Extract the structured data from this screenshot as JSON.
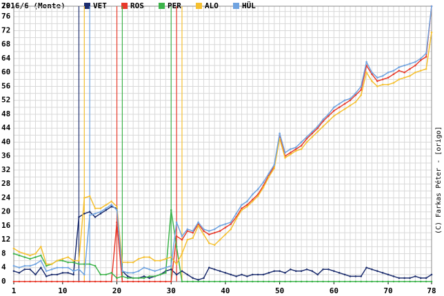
{
  "chart_data": {
    "type": "line",
    "title": "2016/6 (Monte)",
    "credit": "(C) Farkas Péter - [origo]",
    "x": [
      1,
      2,
      3,
      4,
      5,
      6,
      7,
      8,
      9,
      10,
      11,
      12,
      13,
      14,
      15,
      16,
      17,
      18,
      19,
      20,
      21,
      22,
      23,
      24,
      25,
      26,
      27,
      28,
      29,
      30,
      31,
      32,
      33,
      34,
      35,
      36,
      37,
      38,
      39,
      40,
      41,
      42,
      43,
      44,
      45,
      46,
      47,
      48,
      49,
      50,
      51,
      52,
      53,
      54,
      55,
      56,
      57,
      58,
      59,
      60,
      61,
      62,
      63,
      64,
      65,
      66,
      67,
      68,
      69,
      70,
      71,
      72,
      73,
      74,
      75,
      76,
      77,
      78
    ],
    "xlim": [
      1,
      78
    ],
    "xticks": [
      1,
      10,
      20,
      30,
      40,
      50,
      60,
      70,
      78
    ],
    "ylim": [
      0,
      79
    ],
    "yticks": [
      0,
      4,
      8,
      12,
      16,
      20,
      24,
      28,
      32,
      36,
      40,
      44,
      48,
      52,
      56,
      60,
      64,
      68,
      72,
      76,
      79
    ],
    "grid": true,
    "series": [
      {
        "name": "VET",
        "color": "#1c2d6e",
        "pit_laps": [
          13
        ],
        "values": [
          3,
          2.5,
          3.5,
          3.5,
          2,
          4,
          1.5,
          2,
          2,
          2.5,
          2.5,
          2,
          18.5,
          19.5,
          20,
          18.5,
          19.5,
          20.5,
          21.5,
          21,
          3,
          1.5,
          1,
          1,
          1.5,
          1,
          1.5,
          2,
          3,
          3.5,
          2,
          3,
          2,
          1,
          0.5,
          1,
          4,
          3.5,
          3,
          2.5,
          2,
          1.5,
          2,
          1.5,
          2,
          2,
          2,
          2.5,
          3,
          3,
          2.5,
          3.5,
          3,
          3,
          3.5,
          3,
          2,
          3.5,
          3.5,
          3,
          2.5,
          2,
          1.5,
          1.5,
          1.5,
          4,
          3.5,
          3,
          2.5,
          2,
          1.5,
          1,
          1,
          1,
          1.5,
          1,
          1,
          2
        ]
      },
      {
        "name": "ROS",
        "color": "#e8392a",
        "pit_laps": [
          20,
          31
        ],
        "values": [
          0,
          0,
          0,
          0,
          0,
          0,
          0,
          0,
          0,
          0,
          0,
          0,
          0,
          0,
          0,
          0,
          0,
          0,
          0,
          17,
          0,
          0,
          0,
          0,
          0,
          0,
          0,
          0,
          0,
          0,
          13,
          12,
          14.5,
          14,
          16.5,
          14.5,
          13.5,
          14,
          14.5,
          15.5,
          16.5,
          18.5,
          21,
          22,
          23.5,
          25,
          27.5,
          30.5,
          33,
          42,
          36,
          37,
          38,
          39,
          41,
          42.5,
          44,
          46,
          47.5,
          49,
          50,
          51,
          52,
          53.5,
          55,
          62,
          59.5,
          57.5,
          58,
          58.5,
          59.5,
          60.5,
          60,
          61,
          62,
          63.5,
          64.5,
          79
        ]
      },
      {
        "name": "PER",
        "color": "#3cb34a",
        "pit_laps": [
          21,
          30
        ],
        "values": [
          8,
          7.5,
          7,
          6.5,
          7,
          7.5,
          4.5,
          5,
          6,
          6,
          5.5,
          5.5,
          5,
          5,
          5,
          4.5,
          2,
          2,
          2.5,
          1,
          1.5,
          1,
          1,
          1,
          1,
          1.5,
          1.5,
          2,
          2.5,
          20.5,
          10,
          0,
          0,
          0,
          0,
          0,
          0,
          0,
          0,
          0,
          0,
          0,
          0,
          0,
          0,
          0,
          0,
          0,
          0,
          0,
          0,
          0,
          0,
          0,
          0,
          0,
          0,
          0,
          0,
          0,
          0,
          0,
          0,
          0,
          0,
          0,
          0,
          0,
          0,
          0,
          0,
          0,
          0,
          0,
          0,
          0,
          0,
          0
        ]
      },
      {
        "name": "ALO",
        "color": "#f5c030",
        "pit_laps": [
          14,
          32
        ],
        "values": [
          9.5,
          8.5,
          8,
          7.5,
          8,
          10,
          5,
          5,
          6,
          6.5,
          7,
          6,
          6,
          24,
          24.5,
          21,
          21,
          22,
          23,
          21.5,
          5.5,
          5.5,
          5.5,
          6.5,
          7,
          7,
          6,
          6,
          6.5,
          7,
          5,
          8,
          12,
          12.5,
          16,
          13.5,
          11,
          10.5,
          12,
          13.5,
          15,
          18,
          20.5,
          21.5,
          23,
          24.5,
          27,
          30,
          32.5,
          41,
          35.5,
          36.5,
          37.5,
          38,
          40,
          41.5,
          43,
          44.5,
          46,
          47.5,
          48.5,
          49.5,
          50.5,
          51.5,
          53.5,
          60,
          57.5,
          56,
          56.5,
          56.5,
          57,
          58,
          58.5,
          59,
          60,
          60.5,
          61,
          71.5
        ]
      },
      {
        "name": "HÜL",
        "color": "#6fa3e0",
        "pit_laps": [
          15
        ],
        "values": [
          4.5,
          4,
          4.5,
          4.5,
          5,
          6,
          3,
          3.5,
          4,
          4,
          4,
          3,
          3.5,
          2,
          19,
          19.5,
          20,
          21,
          22,
          20.5,
          3,
          2.5,
          2.5,
          3,
          4,
          3.5,
          3,
          3.5,
          4,
          4.5,
          17,
          13,
          15,
          14.5,
          17,
          15,
          14.5,
          15,
          16,
          16.5,
          17,
          19.5,
          22,
          23,
          25,
          26.5,
          28.5,
          31,
          33.5,
          42.5,
          37,
          38,
          38.5,
          40,
          41.5,
          43,
          44.5,
          46.5,
          48,
          50,
          51,
          52,
          52.5,
          54,
          56,
          63,
          60,
          58.5,
          59,
          60,
          60.5,
          61.5,
          62,
          62.5,
          63,
          64,
          65.5,
          79
        ]
      }
    ]
  }
}
